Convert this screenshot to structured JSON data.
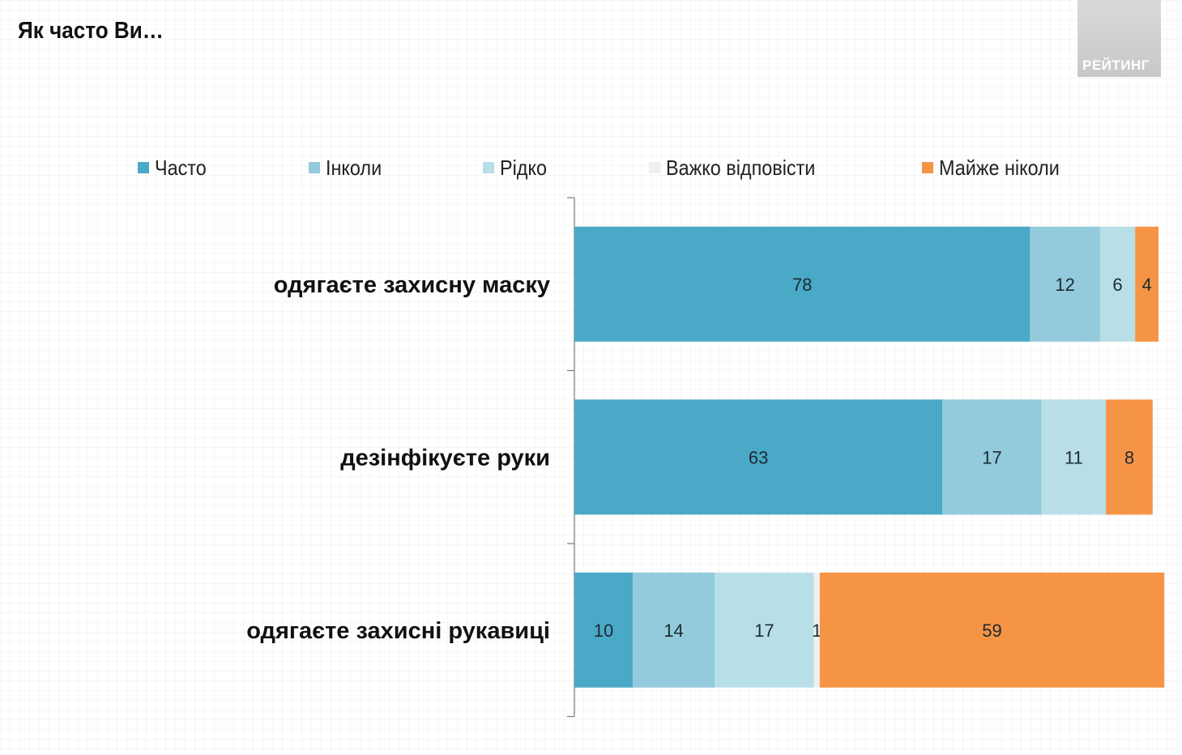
{
  "header": {
    "title": "Як часто Ви…",
    "logo_text": "РЕЙТИНГ"
  },
  "chart_data": {
    "type": "bar",
    "orientation": "horizontal",
    "stacked": true,
    "title": "Як часто Ви…",
    "categories": [
      "одягаєте захисну маску",
      "дезінфікуєте руки",
      "одягаєте захисні рукавиці"
    ],
    "series": [
      {
        "name": "Часто",
        "color": "#4aa9c6",
        "values": [
          78,
          63,
          10
        ]
      },
      {
        "name": "Інколи",
        "color": "#93cbdc",
        "values": [
          12,
          17,
          14
        ]
      },
      {
        "name": "Рідко",
        "color": "#b8dfe8",
        "values": [
          6,
          11,
          17
        ]
      },
      {
        "name": "Важко відповісти",
        "color": "#f0f0f0",
        "values": [
          0,
          0,
          1
        ]
      },
      {
        "name": "Майже ніколи",
        "color": "#f59444",
        "values": [
          4,
          8,
          59
        ]
      }
    ],
    "data_labels": true,
    "xlim": [
      0,
      100
    ],
    "legend": "top",
    "grid": false
  }
}
